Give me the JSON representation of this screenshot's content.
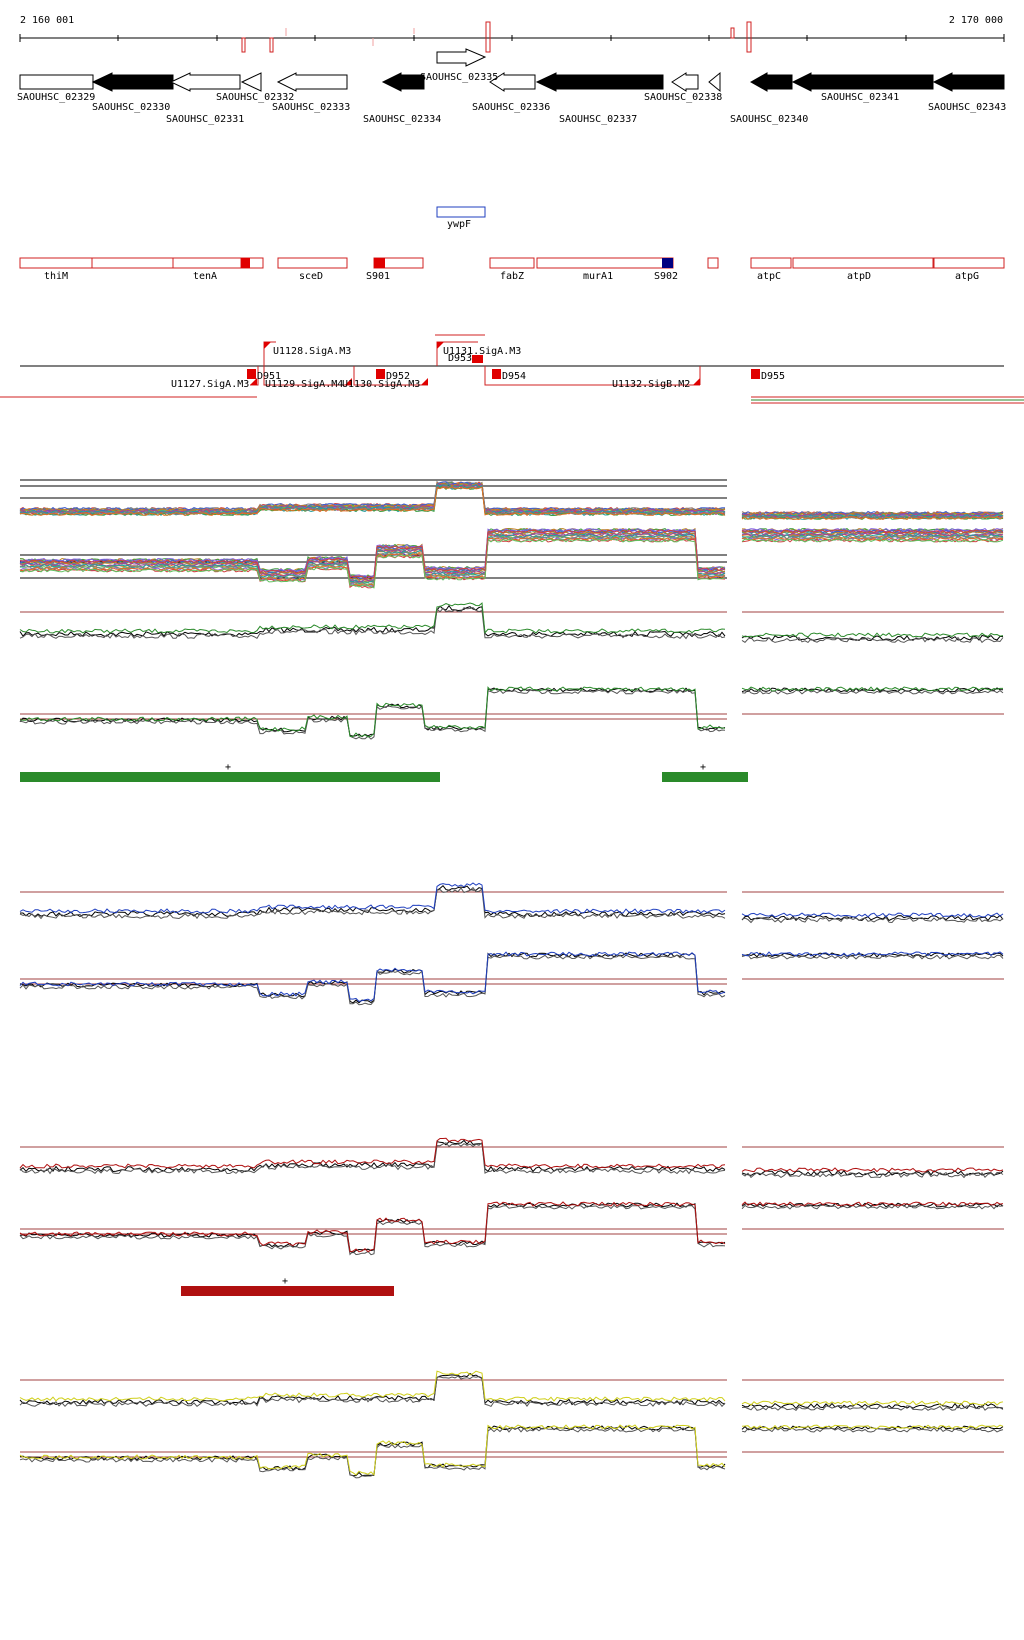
{
  "ruler": {
    "start_label": "2 160 001",
    "end_label": "2 170 000"
  },
  "genes": [
    "SAOUHSC_02329",
    "SAOUHSC_02330",
    "SAOUHSC_02331",
    "SAOUHSC_02332",
    "SAOUHSC_02333",
    "SAOUHSC_02334",
    "SAOUHSC_02335",
    "SAOUHSC_02336",
    "SAOUHSC_02337",
    "SAOUHSC_02338",
    "SAOUHSC_02340",
    "SAOUHSC_02341",
    "SAOUHSC_02343"
  ],
  "annotation_top": {
    "label": "ywpF"
  },
  "annotations": [
    "thiM",
    "tenA",
    "sceD",
    "S901",
    "fabZ",
    "murA1",
    "S902",
    "atpC",
    "atpD",
    "atpG"
  ],
  "promoters_above": [
    "U1128.SigA.M3",
    "U1131.SigA.M3"
  ],
  "promoters_below": [
    "U1127.SigA.M3",
    "U1129.SigA.M4",
    "U1130.SigA.M3",
    "U1132.SigB.M2"
  ],
  "terminators": [
    "D951",
    "D952",
    "D953",
    "D954",
    "D955"
  ],
  "track_colors": {
    "green": "#2a8a2a",
    "blue": "#1f3fbf",
    "red": "#b01010",
    "yellow": "#cfcf1a"
  },
  "green_bar_marks": [
    "+",
    "+"
  ],
  "red_bar_marks": [
    "+"
  ]
}
